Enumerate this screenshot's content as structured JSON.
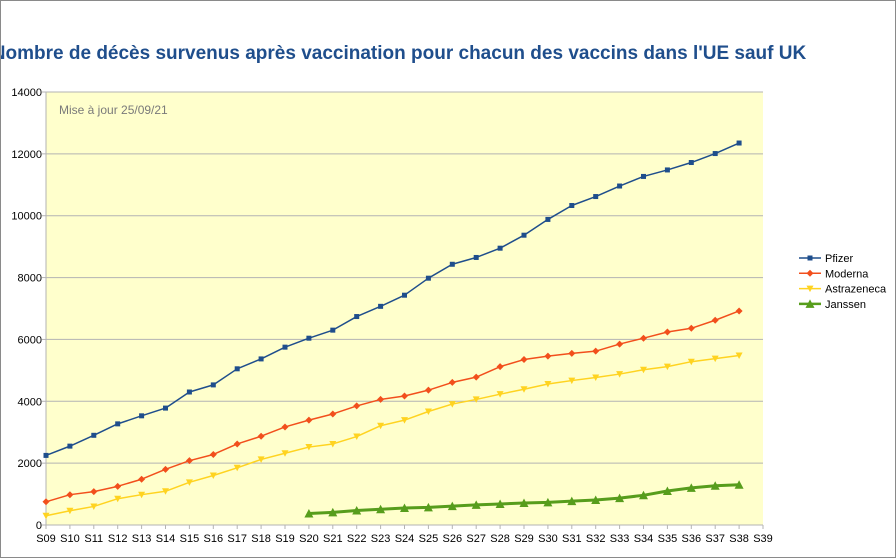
{
  "chart_data": {
    "type": "line",
    "title": "Nombre de décès survenus après vaccination pour chacun des vaccins dans l'UE sauf UK",
    "annotation": "Mise à jour 25/09/21",
    "xlabel": "",
    "ylabel": "",
    "ylim": [
      0,
      14000
    ],
    "yticks": [
      0,
      2000,
      4000,
      6000,
      8000,
      10000,
      12000,
      14000
    ],
    "grid": true,
    "legend_position": "right",
    "categories": [
      "S09",
      "S10",
      "S11",
      "S12",
      "S13",
      "S14",
      "S15",
      "S16",
      "S17",
      "S18",
      "S19",
      "S20",
      "S21",
      "S22",
      "S23",
      "S24",
      "S25",
      "S26",
      "S27",
      "S28",
      "S29",
      "S30",
      "S31",
      "S32",
      "S33",
      "S34",
      "S35",
      "S36",
      "S37",
      "S38",
      "S39"
    ],
    "series": [
      {
        "name": "Pfizer",
        "color": "#1f4e8c",
        "marker": "square",
        "values": [
          2250,
          2550,
          2900,
          3270,
          3530,
          3780,
          4300,
          4530,
          5050,
          5370,
          5750,
          6040,
          6300,
          6740,
          7070,
          7430,
          7980,
          8430,
          8650,
          8950,
          9370,
          9880,
          10330,
          10620,
          10960,
          11270,
          11480,
          11720,
          12010,
          12350,
          null
        ]
      },
      {
        "name": "Moderna",
        "color": "#f24f1c",
        "marker": "diamond",
        "values": [
          750,
          980,
          1080,
          1250,
          1480,
          1800,
          2080,
          2280,
          2620,
          2870,
          3170,
          3390,
          3590,
          3850,
          4060,
          4170,
          4360,
          4610,
          4780,
          5120,
          5350,
          5460,
          5550,
          5620,
          5850,
          6040,
          6240,
          6360,
          6620,
          6920,
          null
        ]
      },
      {
        "name": "Astrazeneca",
        "color": "#ffd320",
        "marker": "triangle-down",
        "values": [
          300,
          460,
          600,
          850,
          980,
          1090,
          1380,
          1600,
          1850,
          2120,
          2320,
          2520,
          2620,
          2860,
          3210,
          3390,
          3670,
          3910,
          4060,
          4230,
          4390,
          4560,
          4670,
          4770,
          4880,
          5020,
          5120,
          5280,
          5380,
          5480,
          null
        ]
      },
      {
        "name": "Janssen",
        "color": "#579d1c",
        "marker": "triangle-up",
        "values": [
          null,
          null,
          null,
          null,
          null,
          null,
          null,
          null,
          null,
          null,
          null,
          370,
          410,
          470,
          510,
          550,
          570,
          610,
          650,
          680,
          710,
          730,
          770,
          810,
          870,
          960,
          1100,
          1200,
          1270,
          1300,
          null
        ]
      }
    ]
  }
}
